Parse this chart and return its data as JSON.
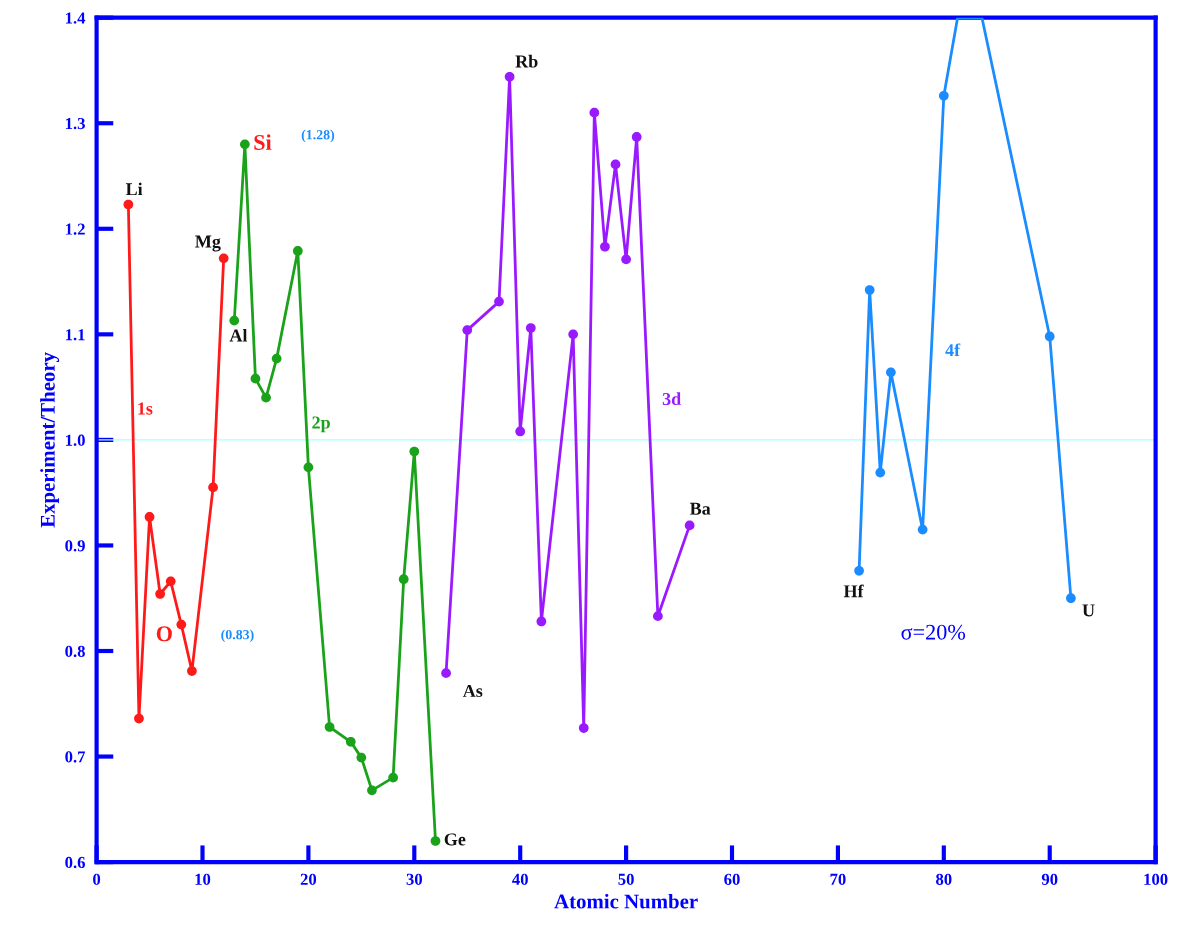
{
  "chart_data": {
    "type": "line",
    "xlabel": "Atomic Number",
    "ylabel": "Experiment/Theory",
    "xlim": [
      0,
      100
    ],
    "xticks": [
      0,
      10,
      20,
      30,
      40,
      50,
      60,
      70,
      80,
      90,
      100
    ],
    "ylim": [
      0.6,
      1.4
    ],
    "yticks": [
      0.6,
      0.7,
      0.8,
      0.9,
      {
        "value": 1,
        "label": "1.0"
      },
      1.1,
      1.2,
      1.3,
      1.4
    ],
    "marker": "circle",
    "grid": false,
    "legend": false,
    "ref_lines": [
      {
        "axis": "y",
        "value": 1.0,
        "color": "#aaffff"
      }
    ],
    "series": [
      {
        "name": "1s",
        "color": "#ff1a1a",
        "x": [
          3,
          4,
          5,
          6,
          7,
          8,
          9,
          11,
          12
        ],
        "values": [
          1.223,
          0.736,
          0.927,
          0.854,
          0.866,
          0.825,
          0.781,
          0.955,
          1.172
        ]
      },
      {
        "name": "2p",
        "color": "#1aa31a",
        "x": [
          13,
          14,
          15,
          16,
          17,
          19,
          20,
          22,
          24,
          25,
          26,
          28,
          29,
          30,
          32
        ],
        "values": [
          1.113,
          1.28,
          1.058,
          1.04,
          1.077,
          1.179,
          0.974,
          0.728,
          0.714,
          0.699,
          0.668,
          0.68,
          0.868,
          0.989,
          0.62
        ]
      },
      {
        "name": "3d",
        "color": "#9a1aff",
        "x": [
          33,
          35,
          38,
          39,
          40,
          41,
          42,
          45,
          46,
          47,
          48,
          49,
          50,
          51,
          53,
          56
        ],
        "values": [
          0.779,
          1.104,
          1.131,
          1.344,
          1.008,
          1.106,
          0.828,
          1.1,
          0.727,
          1.31,
          1.183,
          1.261,
          1.171,
          1.287,
          0.833,
          0.919
        ]
      },
      {
        "name": "4f",
        "color": "#1a8cff",
        "x": [
          72,
          73,
          74,
          75,
          78,
          80,
          81.3,
          83.6,
          90,
          92
        ],
        "values": [
          0.876,
          1.142,
          0.969,
          1.064,
          0.915,
          1.326,
          1.4,
          1.4,
          1.098,
          0.85
        ]
      }
    ],
    "annotations": [
      {
        "text": "Li",
        "x": 3,
        "y": 1.223
      },
      {
        "text": "Mg",
        "x": 12,
        "y": 1.172
      },
      {
        "text": "Al",
        "x": 13,
        "y": 1.113
      },
      {
        "text": "Si",
        "x": 14,
        "y": 1.28
      },
      {
        "text": "O",
        "x": 8,
        "y": 0.825
      },
      {
        "text": "Ge",
        "x": 32,
        "y": 0.62
      },
      {
        "text": "As",
        "x": 33,
        "y": 0.779
      },
      {
        "text": "Rb",
        "x": 39,
        "y": 1.344
      },
      {
        "text": "Ba",
        "x": 56,
        "y": 0.919
      },
      {
        "text": "Hf",
        "x": 72,
        "y": 0.876
      },
      {
        "text": "U",
        "x": 92,
        "y": 0.85
      },
      "(1.28)",
      "(0.83)",
      "σ=20%"
    ]
  }
}
